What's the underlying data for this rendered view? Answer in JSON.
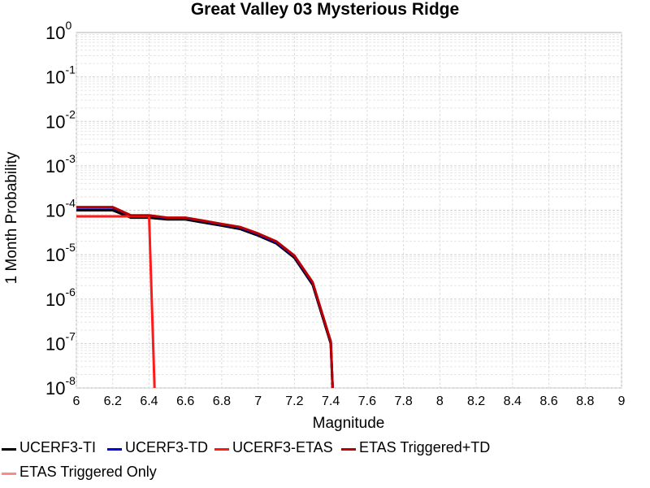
{
  "chart_data": {
    "type": "line",
    "title": "Great Valley 03 Mysterious Ridge",
    "xlabel": "Magnitude",
    "ylabel": "1 Month Probability",
    "xlim": [
      6,
      9
    ],
    "ylim": [
      1e-08,
      1
    ],
    "yscale": "log",
    "grid": true,
    "x_ticks": [
      "6",
      "6.2",
      "6.4",
      "6.6",
      "6.8",
      "7",
      "7.2",
      "7.4",
      "7.6",
      "7.8",
      "8",
      "8.2",
      "8.4",
      "8.6",
      "8.8",
      "9"
    ],
    "y_ticks": [
      {
        "base": "10",
        "exp": "0",
        "value": 1
      },
      {
        "base": "10",
        "exp": "-1",
        "value": 0.1
      },
      {
        "base": "10",
        "exp": "-2",
        "value": 0.01
      },
      {
        "base": "10",
        "exp": "-3",
        "value": 0.001
      },
      {
        "base": "10",
        "exp": "-4",
        "value": 0.0001
      },
      {
        "base": "10",
        "exp": "-5",
        "value": 1e-05
      },
      {
        "base": "10",
        "exp": "-6",
        "value": 1e-06
      },
      {
        "base": "10",
        "exp": "-7",
        "value": 1e-07
      },
      {
        "base": "10",
        "exp": "-8",
        "value": 1e-08
      }
    ],
    "legend_position": "bottom",
    "series": [
      {
        "name": "UCERF3-TI",
        "color": "#000000",
        "x": [
          6.0,
          6.2,
          6.3,
          6.4,
          6.5,
          6.6,
          6.7,
          6.8,
          6.9,
          7.0,
          7.1,
          7.2,
          7.3,
          7.4,
          7.41
        ],
        "y": [
          0.0001,
          0.0001,
          6.8e-05,
          6.8e-05,
          6.2e-05,
          6.2e-05,
          5.3e-05,
          4.5e-05,
          3.8e-05,
          2.7e-05,
          1.8e-05,
          8.5e-06,
          2.1e-06,
          1e-07,
          1e-09
        ]
      },
      {
        "name": "UCERF3-TD",
        "color": "#0000dd",
        "x": [
          6.0,
          6.2,
          6.3,
          6.4,
          6.5,
          6.6,
          6.7,
          6.8,
          6.9,
          7.0,
          7.1,
          7.2,
          7.3,
          7.4,
          7.41
        ],
        "y": [
          0.000115,
          0.000115,
          7.5e-05,
          7.5e-05,
          6.7e-05,
          6.7e-05,
          5.7e-05,
          4.8e-05,
          4.1e-05,
          2.9e-05,
          1.9e-05,
          9.2e-06,
          2.3e-06,
          1.1e-07,
          1e-09
        ]
      },
      {
        "name": "UCERF3-ETAS",
        "color": "#ff1a1a",
        "x": [
          6.0,
          6.2,
          6.3,
          6.4,
          6.43
        ],
        "y": [
          7.3e-05,
          7.3e-05,
          7.3e-05,
          7.3e-05,
          1e-09
        ]
      },
      {
        "name": "ETAS Triggered+TD",
        "color": "#bb0000",
        "x": [
          6.0,
          6.2,
          6.3,
          6.4,
          6.5,
          6.6,
          6.7,
          6.8,
          6.9,
          7.0,
          7.1,
          7.2,
          7.3,
          7.4,
          7.41
        ],
        "y": [
          0.000118,
          0.000118,
          7.7e-05,
          7.7e-05,
          6.8e-05,
          6.8e-05,
          5.8e-05,
          4.9e-05,
          4.2e-05,
          3e-05,
          2e-05,
          9.5e-06,
          2.4e-06,
          1.1e-07,
          1e-09
        ]
      },
      {
        "name": "ETAS Triggered Only",
        "color": "#ff8888",
        "x": [],
        "y": []
      }
    ]
  }
}
